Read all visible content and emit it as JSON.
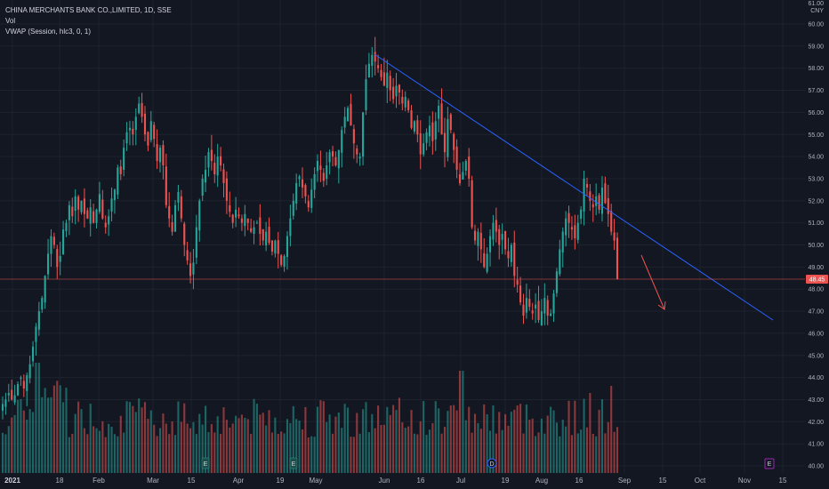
{
  "legend": {
    "symbol": "CHINA MERCHANTS BANK CO.,LIMITED, 1D, SSE",
    "vol": "Vol",
    "vwap": "VWAP (Session, hlc3, 0, 1)"
  },
  "price_axis": {
    "currency_top": "61.00",
    "currency": "CNY",
    "ticks": [
      "60.00",
      "59.00",
      "58.00",
      "57.00",
      "56.00",
      "55.00",
      "54.00",
      "53.00",
      "52.00",
      "51.00",
      "50.00",
      "49.00",
      "48.00",
      "47.00",
      "46.00",
      "45.00",
      "44.00",
      "43.00",
      "42.00",
      "41.00",
      "40.00"
    ],
    "last_price": "48.45"
  },
  "time_axis": {
    "labels": [
      {
        "text": "2021",
        "bold": true
      },
      {
        "text": "18",
        "bold": false
      },
      {
        "text": "Feb",
        "bold": false
      },
      {
        "text": "Mar",
        "bold": false
      },
      {
        "text": "15",
        "bold": false
      },
      {
        "text": "Apr",
        "bold": false
      },
      {
        "text": "19",
        "bold": false
      },
      {
        "text": "May",
        "bold": false
      },
      {
        "text": "Jun",
        "bold": false
      },
      {
        "text": "16",
        "bold": false
      },
      {
        "text": "Jul",
        "bold": false
      },
      {
        "text": "19",
        "bold": false
      },
      {
        "text": "Aug",
        "bold": false
      },
      {
        "text": "16",
        "bold": false
      },
      {
        "text": "Sep",
        "bold": false
      },
      {
        "text": "15",
        "bold": false
      },
      {
        "text": "Oct",
        "bold": false
      },
      {
        "text": "Nov",
        "bold": false
      },
      {
        "text": "15",
        "bold": false
      }
    ]
  },
  "events": [
    {
      "letter": "E",
      "kind": "earnings"
    },
    {
      "letter": "E",
      "kind": "earnings"
    },
    {
      "letter": "D",
      "kind": "dividend"
    },
    {
      "letter": "E",
      "kind": "earnings-future"
    }
  ],
  "colors": {
    "background": "#131722",
    "up": "#26a69a",
    "down": "#ef5350",
    "trendline": "#2962ff",
    "arrow": "#ef5350",
    "grid": "#1e222d",
    "text": "#b2b5be"
  },
  "chart_data": {
    "type": "candlestick",
    "title": "CHINA MERCHANTS BANK CO.,LIMITED, 1D, SSE",
    "ylim": [
      40,
      61
    ],
    "series": [
      {
        "close": 42.8
      },
      {
        "close": 43.0
      },
      {
        "close": 43.3
      },
      {
        "close": 43.0
      },
      {
        "close": 43.2
      },
      {
        "close": 43.7
      },
      {
        "close": 44.0
      },
      {
        "close": 43.5
      },
      {
        "close": 44.1
      },
      {
        "close": 44.6
      },
      {
        "close": 45.4
      },
      {
        "close": 46.3
      },
      {
        "close": 47.0
      },
      {
        "close": 47.6
      },
      {
        "close": 48.6
      },
      {
        "close": 49.6
      },
      {
        "close": 50.4
      },
      {
        "close": 50.0
      },
      {
        "close": 49.0
      },
      {
        "close": 49.5
      },
      {
        "close": 50.7
      },
      {
        "close": 51.0
      },
      {
        "close": 51.8
      },
      {
        "close": 51.3
      },
      {
        "close": 52.2
      },
      {
        "close": 51.6
      },
      {
        "close": 52.0
      },
      {
        "close": 51.4
      },
      {
        "close": 51.2
      },
      {
        "close": 51.7
      },
      {
        "close": 51.0
      },
      {
        "close": 51.6
      },
      {
        "close": 52.3
      },
      {
        "close": 51.2
      },
      {
        "close": 50.8
      },
      {
        "close": 51.3
      },
      {
        "close": 52.1
      },
      {
        "close": 52.5
      },
      {
        "close": 53.5
      },
      {
        "close": 53.2
      },
      {
        "close": 54.4
      },
      {
        "close": 55.1
      },
      {
        "close": 55.3
      },
      {
        "close": 55.0
      },
      {
        "close": 55.8
      },
      {
        "close": 56.4
      },
      {
        "close": 55.8
      },
      {
        "close": 55.0
      },
      {
        "close": 54.5
      },
      {
        "close": 55.6
      },
      {
        "close": 54.8
      },
      {
        "close": 53.8
      },
      {
        "close": 54.4
      },
      {
        "close": 53.6
      },
      {
        "close": 51.8
      },
      {
        "close": 51.2
      },
      {
        "close": 50.6
      },
      {
        "close": 51.8
      },
      {
        "close": 52.4
      },
      {
        "close": 51.2
      },
      {
        "close": 50.0
      },
      {
        "close": 49.3
      },
      {
        "close": 48.6
      },
      {
        "close": 49.2
      },
      {
        "close": 50.8
      },
      {
        "close": 52.0
      },
      {
        "close": 53.0
      },
      {
        "close": 53.4
      },
      {
        "close": 54.2
      },
      {
        "close": 53.8
      },
      {
        "close": 53.2
      },
      {
        "close": 54.0
      },
      {
        "close": 53.6
      },
      {
        "close": 52.8
      },
      {
        "close": 52.0
      },
      {
        "close": 51.5
      },
      {
        "close": 51.0
      },
      {
        "close": 51.6
      },
      {
        "close": 51.3
      },
      {
        "close": 51.0
      },
      {
        "close": 51.4
      },
      {
        "close": 51.0
      },
      {
        "close": 50.6
      },
      {
        "close": 50.8
      },
      {
        "close": 51.0
      },
      {
        "close": 50.5
      },
      {
        "close": 50.2
      },
      {
        "close": 50.6
      },
      {
        "close": 50.1
      },
      {
        "close": 49.7
      },
      {
        "close": 50.2
      },
      {
        "close": 49.6
      },
      {
        "close": 49.1
      },
      {
        "close": 49.5
      },
      {
        "close": 50.4
      },
      {
        "close": 51.2
      },
      {
        "close": 52.0
      },
      {
        "close": 52.8
      },
      {
        "close": 53.1
      },
      {
        "close": 52.6
      },
      {
        "close": 52.2
      },
      {
        "close": 51.7
      },
      {
        "close": 52.5
      },
      {
        "close": 53.2
      },
      {
        "close": 53.8
      },
      {
        "close": 53.4
      },
      {
        "close": 52.9
      },
      {
        "close": 53.6
      },
      {
        "close": 54.2
      },
      {
        "close": 54.0
      },
      {
        "close": 53.6
      },
      {
        "close": 54.3
      },
      {
        "close": 55.2
      },
      {
        "close": 55.8
      },
      {
        "close": 56.2
      },
      {
        "close": 55.4
      },
      {
        "close": 54.6
      },
      {
        "close": 54.1
      },
      {
        "close": 54.0
      },
      {
        "close": 56.0
      },
      {
        "close": 57.5
      },
      {
        "close": 58.2
      },
      {
        "close": 58.6
      },
      {
        "close": 58.3
      },
      {
        "close": 58.0
      },
      {
        "close": 57.6
      },
      {
        "close": 57.2
      },
      {
        "close": 57.8
      },
      {
        "close": 57.0
      },
      {
        "close": 56.6
      },
      {
        "close": 57.2
      },
      {
        "close": 56.9
      },
      {
        "close": 56.4
      },
      {
        "close": 56.7
      },
      {
        "close": 56.1
      },
      {
        "close": 55.3
      },
      {
        "close": 55.6
      },
      {
        "close": 55.0
      },
      {
        "close": 54.1
      },
      {
        "close": 54.6
      },
      {
        "close": 55.1
      },
      {
        "close": 55.4
      },
      {
        "close": 54.7
      },
      {
        "close": 55.6
      },
      {
        "close": 56.3
      },
      {
        "close": 55.0
      },
      {
        "close": 54.2
      },
      {
        "close": 55.7
      },
      {
        "close": 55.2
      },
      {
        "close": 54.3
      },
      {
        "close": 53.4
      },
      {
        "close": 52.8
      },
      {
        "close": 53.3
      },
      {
        "close": 53.8
      },
      {
        "close": 53.0
      },
      {
        "close": 50.8
      },
      {
        "close": 50.2
      },
      {
        "close": 50.6
      },
      {
        "close": 49.8
      },
      {
        "close": 49.0
      },
      {
        "close": 49.6
      },
      {
        "close": 50.4
      },
      {
        "close": 51.0
      },
      {
        "close": 50.6
      },
      {
        "close": 50.0
      },
      {
        "close": 50.5
      },
      {
        "close": 49.8
      },
      {
        "close": 49.4
      },
      {
        "close": 50.0
      },
      {
        "close": 48.6
      },
      {
        "close": 48.2
      },
      {
        "close": 47.4
      },
      {
        "close": 46.8
      },
      {
        "close": 47.6
      },
      {
        "close": 47.2
      },
      {
        "close": 46.9
      },
      {
        "close": 47.3
      },
      {
        "close": 46.6
      },
      {
        "close": 47.0
      },
      {
        "close": 47.6
      },
      {
        "close": 46.8
      },
      {
        "close": 46.9
      },
      {
        "close": 47.8
      },
      {
        "close": 48.8
      },
      {
        "close": 49.8
      },
      {
        "close": 50.6
      },
      {
        "close": 51.2
      },
      {
        "close": 51.0
      },
      {
        "close": 50.7
      },
      {
        "close": 50.3
      },
      {
        "close": 51.0
      },
      {
        "close": 51.6
      },
      {
        "close": 53.0
      },
      {
        "close": 52.6
      },
      {
        "close": 52.0
      },
      {
        "close": 51.7
      },
      {
        "close": 52.2
      },
      {
        "close": 51.6
      },
      {
        "close": 52.6
      },
      {
        "close": 51.9
      },
      {
        "close": 51.4
      },
      {
        "close": 50.6
      },
      {
        "close": 50.2
      },
      {
        "close": 48.45
      }
    ],
    "notes": "Daily OHLC of China Merchants Bank with descending trendline from ~58.5 (Jun) to ~46.5 (Nov) and last price 48.45"
  }
}
